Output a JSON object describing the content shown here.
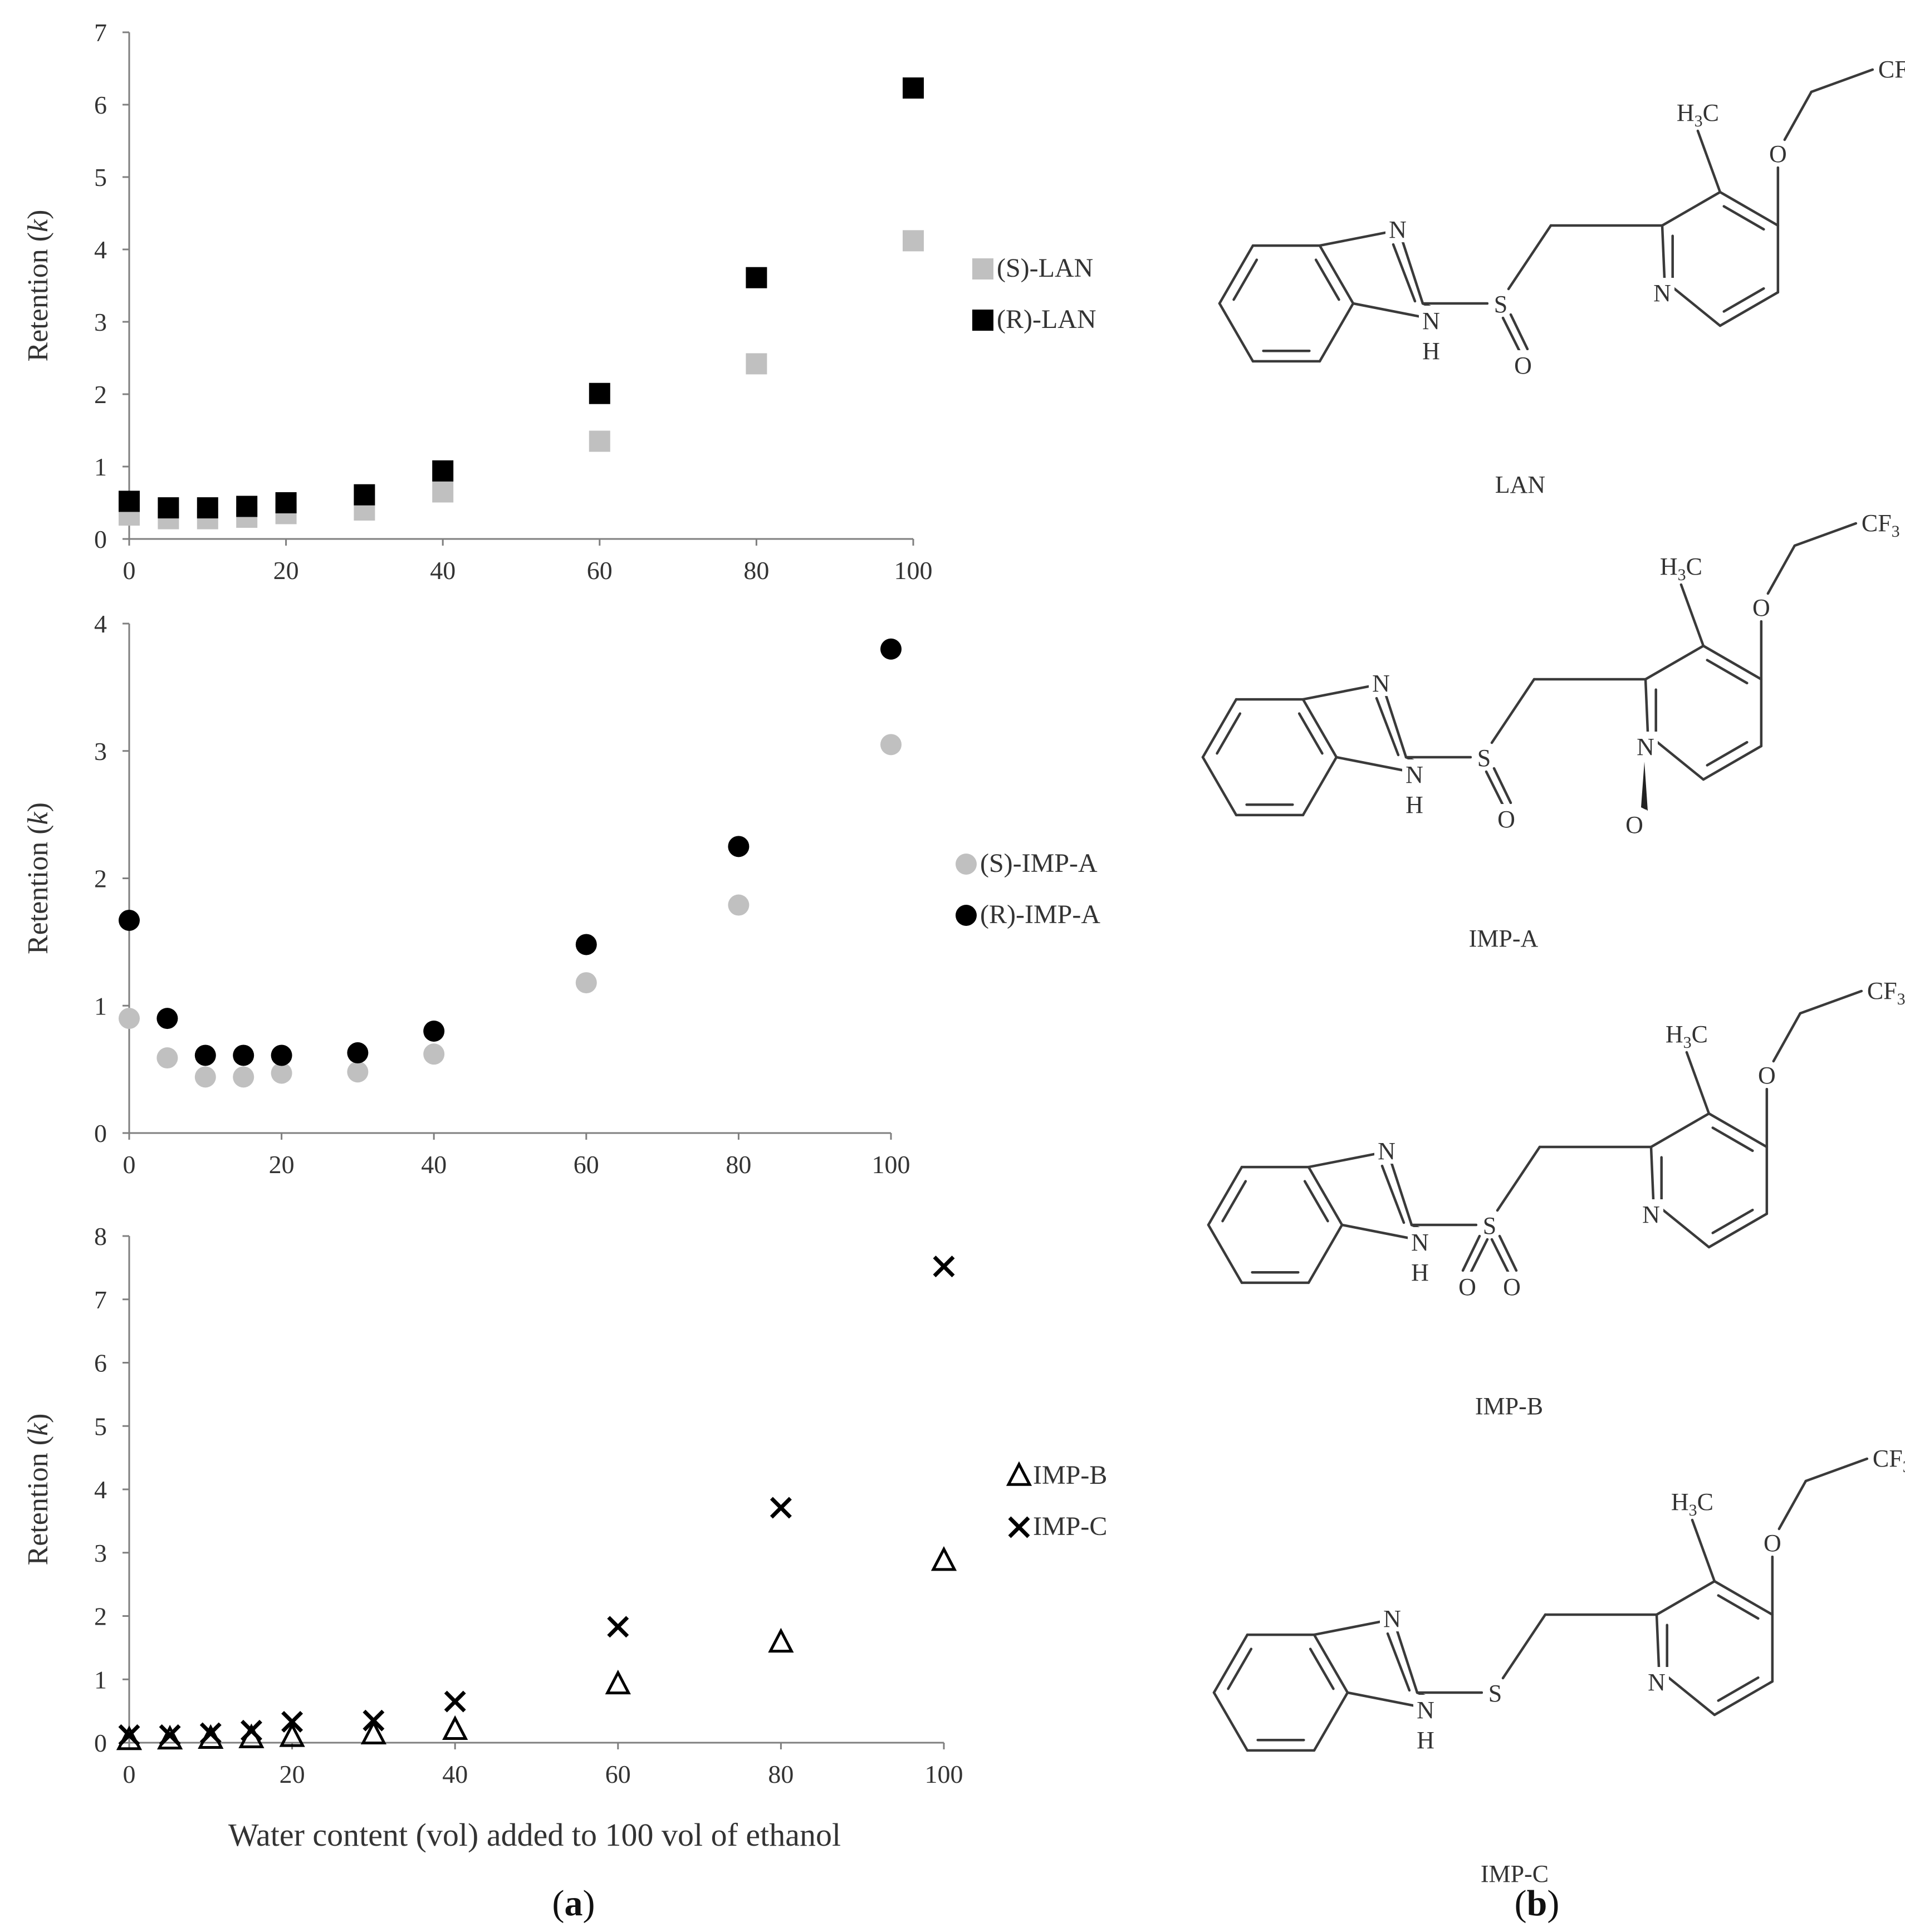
{
  "chart_data": [
    {
      "type": "scatter",
      "ylabel": "Retention (k)",
      "xlim": [
        0,
        100
      ],
      "ylim": [
        0,
        7
      ],
      "x_ticks": [
        0,
        20,
        40,
        60,
        80,
        100
      ],
      "y_ticks": [
        0,
        1,
        2,
        3,
        4,
        5,
        6,
        7
      ],
      "legend_position": "right",
      "series": [
        {
          "name": "(S)-LAN",
          "marker": "square",
          "color": "#c0c0c0",
          "x": [
            0,
            5,
            10,
            15,
            20,
            30,
            40,
            60,
            80,
            100
          ],
          "y": [
            0.33,
            0.28,
            0.28,
            0.3,
            0.35,
            0.4,
            0.65,
            1.35,
            2.42,
            4.12
          ]
        },
        {
          "name": "(R)-LAN",
          "marker": "square",
          "color": "#000000",
          "x": [
            0,
            5,
            10,
            15,
            20,
            30,
            40,
            60,
            80,
            100
          ],
          "y": [
            0.52,
            0.43,
            0.43,
            0.45,
            0.5,
            0.61,
            0.94,
            2.01,
            3.61,
            6.23
          ]
        }
      ]
    },
    {
      "type": "scatter",
      "ylabel": "Retention (k)",
      "xlim": [
        0,
        100
      ],
      "ylim": [
        0,
        4
      ],
      "x_ticks": [
        0,
        20,
        40,
        60,
        80,
        100
      ],
      "y_ticks": [
        0,
        1,
        2,
        3,
        4
      ],
      "legend_position": "right",
      "series": [
        {
          "name": "(S)-IMP-A",
          "marker": "circle",
          "color": "#c0c0c0",
          "x": [
            0,
            5,
            10,
            15,
            20,
            30,
            40,
            60,
            80,
            100
          ],
          "y": [
            0.9,
            0.59,
            0.44,
            0.44,
            0.47,
            0.48,
            0.62,
            1.18,
            1.79,
            3.05
          ]
        },
        {
          "name": "(R)-IMP-A",
          "marker": "circle",
          "color": "#000000",
          "x": [
            0,
            5,
            10,
            15,
            20,
            30,
            40,
            60,
            80,
            100
          ],
          "y": [
            1.67,
            0.9,
            0.61,
            0.61,
            0.61,
            0.63,
            0.8,
            1.48,
            2.25,
            3.8
          ]
        }
      ]
    },
    {
      "type": "scatter",
      "ylabel": "Retention (k)",
      "xlabel": "Water content (vol) added to 100 vol of ethanol",
      "xlim": [
        0,
        100
      ],
      "ylim": [
        0,
        8
      ],
      "x_ticks": [
        0,
        20,
        40,
        60,
        80,
        100
      ],
      "y_ticks": [
        0,
        1,
        2,
        3,
        4,
        5,
        6,
        7,
        8
      ],
      "legend_position": "right",
      "series": [
        {
          "name": "IMP-B",
          "marker": "triangle",
          "color": "#000000",
          "x": [
            0,
            5,
            10,
            15,
            20,
            30,
            40,
            60,
            80,
            100
          ],
          "y": [
            0.04,
            0.05,
            0.06,
            0.07,
            0.09,
            0.13,
            0.2,
            0.92,
            1.58,
            2.87
          ]
        },
        {
          "name": "IMP-C",
          "marker": "x",
          "color": "#000000",
          "x": [
            0,
            5,
            10,
            15,
            20,
            30,
            40,
            60,
            80,
            100
          ],
          "y": [
            0.12,
            0.12,
            0.15,
            0.19,
            0.33,
            0.35,
            0.65,
            1.83,
            3.71,
            7.52
          ]
        }
      ]
    }
  ],
  "panel_labels": {
    "a": "a",
    "b": "b"
  },
  "structures": [
    {
      "name": "LAN",
      "substituent": "S=O",
      "n_oxide": false
    },
    {
      "name": "IMP-A",
      "substituent": "S=O",
      "n_oxide": true
    },
    {
      "name": "IMP-B",
      "substituent": "SO2",
      "n_oxide": false
    },
    {
      "name": "IMP-C",
      "substituent": "S",
      "n_oxide": false
    }
  ],
  "atom_labels": {
    "N": "N",
    "NH": "N",
    "H": "H",
    "S": "S",
    "O": "O",
    "CF": "CF",
    "H3C_H": "H",
    "H3C_C": "C",
    "sub3": "3"
  }
}
